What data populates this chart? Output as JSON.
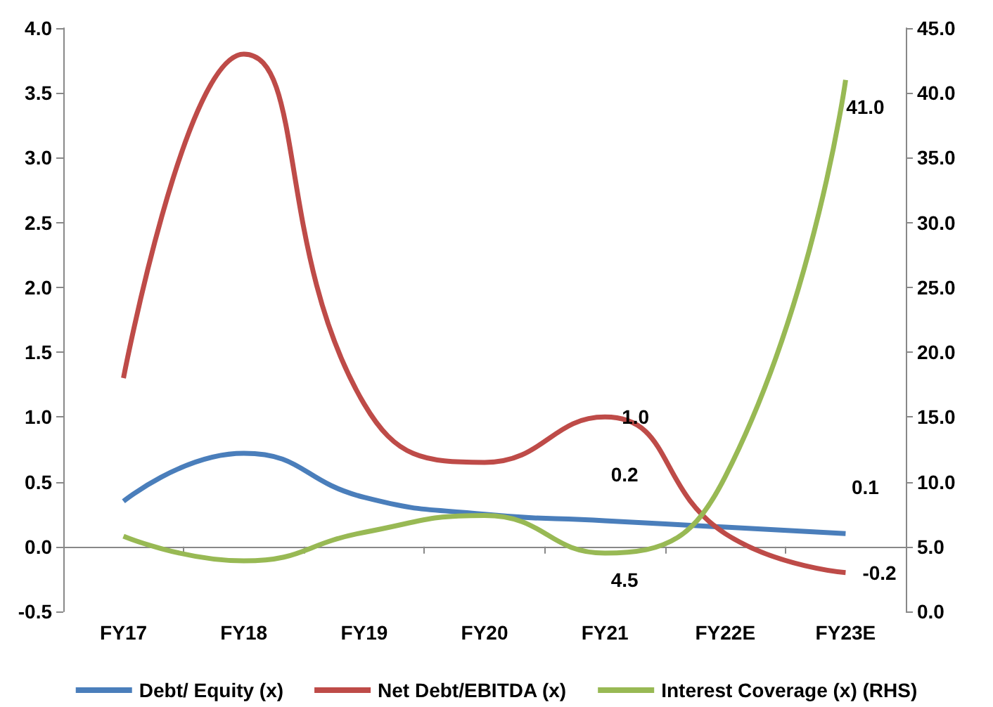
{
  "chart_data": {
    "type": "line",
    "categories": [
      "FY17",
      "FY18",
      "FY19",
      "FY20",
      "FY21",
      "FY22E",
      "FY23E"
    ],
    "series": [
      {
        "name": "Debt/ Equity (x)",
        "color": "#4a7ebb",
        "values": [
          0.35,
          0.72,
          0.38,
          0.25,
          0.2,
          0.15,
          0.1
        ],
        "value_labels": [
          null,
          null,
          null,
          null,
          "0.2",
          null,
          "0.1"
        ]
      },
      {
        "name": "Net Debt/EBITDA (x)",
        "color": "#be4b48",
        "values": [
          1.3,
          3.8,
          1.1,
          0.65,
          1.0,
          0.1,
          -0.2
        ],
        "value_labels": [
          null,
          null,
          null,
          null,
          "1.0",
          null,
          "-0.2"
        ]
      },
      {
        "name": "Interest Coverage (x) (RHS)",
        "color": "#98b954",
        "axis": "y2",
        "values": [
          5.8,
          3.9,
          6.1,
          7.4,
          4.5,
          10.4,
          41.0
        ],
        "value_labels": [
          null,
          null,
          null,
          null,
          "4.5",
          null,
          "41.0"
        ]
      }
    ],
    "ylim": [
      -0.5,
      4.0
    ],
    "yticks": [
      {
        "value": -0.5,
        "label": "-0.5"
      },
      {
        "value": 0,
        "label": "0.0"
      },
      {
        "value": 0.5,
        "label": "0.5"
      },
      {
        "value": 1,
        "label": "1.0"
      },
      {
        "value": 1.5,
        "label": "1.5"
      },
      {
        "value": 2,
        "label": "2.0"
      },
      {
        "value": 2.5,
        "label": "2.5"
      },
      {
        "value": 3,
        "label": "3.0"
      },
      {
        "value": 3.5,
        "label": "3.5"
      },
      {
        "value": 4,
        "label": "4.0"
      }
    ],
    "y2lim": [
      0,
      45
    ],
    "y2ticks": [
      {
        "value": 0,
        "label": "0.0"
      },
      {
        "value": 5,
        "label": "5.0"
      },
      {
        "value": 10,
        "label": "10.0"
      },
      {
        "value": 15,
        "label": "15.0"
      },
      {
        "value": 20,
        "label": "20.0"
      },
      {
        "value": 25,
        "label": "25.0"
      },
      {
        "value": 30,
        "label": "30.0"
      },
      {
        "value": 35,
        "label": "35.0"
      },
      {
        "value": 40,
        "label": "40.0"
      },
      {
        "value": 45,
        "label": "45.0"
      }
    ],
    "legend": "bottom",
    "line_style": "solid"
  }
}
